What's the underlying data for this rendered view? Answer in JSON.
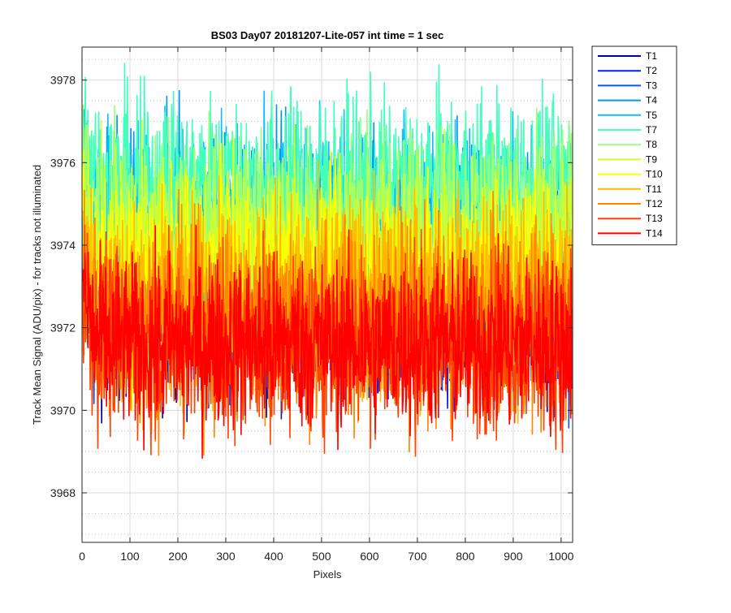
{
  "chart_data": {
    "type": "line",
    "title": "BS03 Day07 20181207-Lite-057 int time = 1 sec",
    "xlabel": "Pixels",
    "ylabel": "Track Mean Signal (ADU/pix) - for tracks not illuminated",
    "xlim": [
      0,
      1024
    ],
    "ylim": [
      3966.8,
      3978.8
    ],
    "x_ticks": [
      0,
      100,
      200,
      300,
      400,
      500,
      600,
      700,
      800,
      900,
      1000
    ],
    "x_tick_labels": [
      "0",
      "100",
      "200",
      "300",
      "400",
      "500",
      "600",
      "700",
      "800",
      "900",
      "1000"
    ],
    "y_ticks": [
      3968,
      3970,
      3972,
      3974,
      3976,
      3978
    ],
    "y_tick_labels": [
      "3968",
      "3970",
      "3972",
      "3974",
      "3976",
      "3978"
    ],
    "grid": true,
    "minor_grid_y": true,
    "legend_position": "outside-right",
    "x_range": [
      1,
      1024
    ],
    "series": [
      {
        "name": "T1",
        "color": "#0000AA",
        "mean": 3972.6,
        "noise": 1.3
      },
      {
        "name": "T2",
        "color": "#0022DD",
        "mean": 3972.7,
        "noise": 1.3
      },
      {
        "name": "T3",
        "color": "#1155EE",
        "mean": 3972.9,
        "noise": 1.3
      },
      {
        "name": "T4",
        "color": "#0099EE",
        "mean": 3974.2,
        "noise": 1.4
      },
      {
        "name": "T5",
        "color": "#11BBFF",
        "mean": 3974.5,
        "noise": 1.4
      },
      {
        "name": "T7",
        "color": "#44FFBB",
        "mean": 3975.4,
        "noise": 1.3
      },
      {
        "name": "T8",
        "color": "#99FF77",
        "mean": 3974.6,
        "noise": 1.3
      },
      {
        "name": "T9",
        "color": "#CCFF33",
        "mean": 3973.9,
        "noise": 1.3
      },
      {
        "name": "T10",
        "color": "#FFFF00",
        "mean": 3973.3,
        "noise": 1.3
      },
      {
        "name": "T11",
        "color": "#FFBB00",
        "mean": 3972.8,
        "noise": 1.4
      },
      {
        "name": "T12",
        "color": "#FF8800",
        "mean": 3972.1,
        "noise": 1.4
      },
      {
        "name": "T13",
        "color": "#FF4400",
        "mean": 3971.7,
        "noise": 1.3
      },
      {
        "name": "T14",
        "color": "#FF0000",
        "mean": 3971.6,
        "noise": 1.2
      }
    ]
  }
}
